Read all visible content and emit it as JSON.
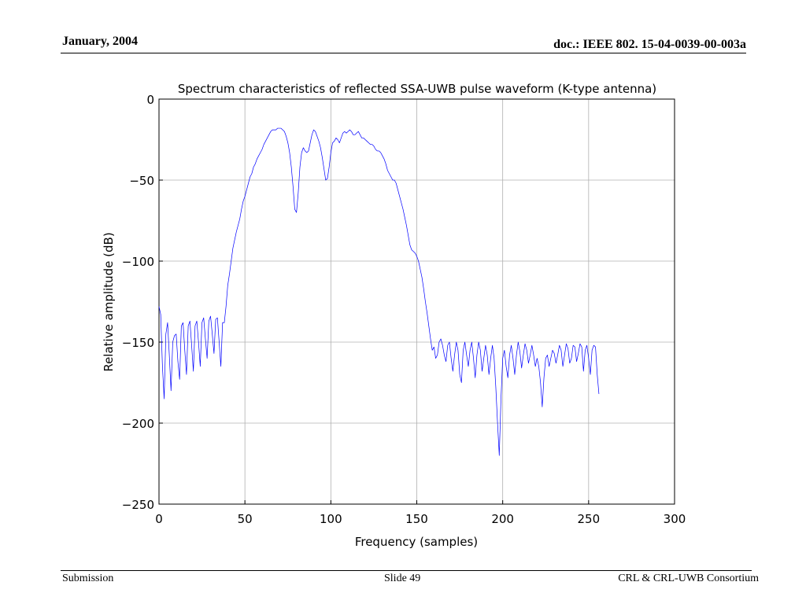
{
  "header": {
    "date": "January, 2004",
    "doc_id": "doc.: IEEE 802. 15-04-0039-00-003a"
  },
  "footer": {
    "left": "Submission",
    "center": "Slide 49",
    "right": "CRL & CRL-UWB Consortium"
  },
  "colors": {
    "line": "#0000ff",
    "grid": "#b0b0b0",
    "axis": "#000000"
  },
  "chart_data": {
    "type": "line",
    "title": "Spectrum characteristics of reflected SSA-UWB pulse waveform (K-type antenna)",
    "xlabel": "Frequency (samples)",
    "ylabel": "Relative amplitude (dB)",
    "xlim": [
      0,
      300
    ],
    "ylim": [
      -250,
      0
    ],
    "xticks": [
      0,
      50,
      100,
      150,
      200,
      250,
      300
    ],
    "yticks": [
      0,
      -50,
      -100,
      -150,
      -200,
      -250
    ],
    "xtick_labels": [
      "0",
      "50",
      "100",
      "150",
      "200",
      "250",
      "300"
    ],
    "ytick_labels": [
      "0",
      "−50",
      "−100",
      "−150",
      "−200",
      "−250"
    ],
    "grid": true,
    "series": [
      {
        "points": [
          [
            0,
            -128
          ],
          [
            1,
            -133
          ],
          [
            2,
            -165
          ],
          [
            3,
            -185
          ],
          [
            4,
            -145
          ],
          [
            5,
            -138
          ],
          [
            6,
            -158
          ],
          [
            7,
            -180
          ],
          [
            8,
            -150
          ],
          [
            9,
            -146
          ],
          [
            10,
            -145
          ],
          [
            11,
            -162
          ],
          [
            12,
            -173
          ],
          [
            13,
            -140
          ],
          [
            14,
            -138
          ],
          [
            15,
            -155
          ],
          [
            16,
            -170
          ],
          [
            17,
            -140
          ],
          [
            18,
            -137
          ],
          [
            19,
            -152
          ],
          [
            20,
            -168
          ],
          [
            21,
            -140
          ],
          [
            22,
            -137
          ],
          [
            23,
            -150
          ],
          [
            24,
            -165
          ],
          [
            25,
            -138
          ],
          [
            26,
            -135
          ],
          [
            27,
            -148
          ],
          [
            28,
            -160
          ],
          [
            29,
            -137
          ],
          [
            30,
            -134
          ],
          [
            31,
            -145
          ],
          [
            32,
            -157
          ],
          [
            33,
            -136
          ],
          [
            34,
            -135
          ],
          [
            35,
            -150
          ],
          [
            36,
            -165
          ],
          [
            37,
            -138
          ],
          [
            38,
            -138
          ],
          [
            39,
            -128
          ],
          [
            40,
            -115
          ],
          [
            41,
            -108
          ],
          [
            42,
            -100
          ],
          [
            43,
            -92
          ],
          [
            44,
            -87
          ],
          [
            45,
            -82
          ],
          [
            46,
            -78
          ],
          [
            47,
            -74
          ],
          [
            48,
            -68
          ],
          [
            49,
            -63
          ],
          [
            50,
            -60
          ],
          [
            51,
            -56
          ],
          [
            52,
            -52
          ],
          [
            53,
            -48
          ],
          [
            54,
            -46
          ],
          [
            55,
            -42
          ],
          [
            56,
            -40
          ],
          [
            57,
            -37
          ],
          [
            58,
            -35
          ],
          [
            59,
            -33
          ],
          [
            60,
            -31
          ],
          [
            61,
            -28
          ],
          [
            62,
            -26
          ],
          [
            63,
            -24
          ],
          [
            64,
            -22
          ],
          [
            65,
            -20
          ],
          [
            66,
            -19
          ],
          [
            67,
            -19
          ],
          [
            68,
            -19
          ],
          [
            69,
            -18
          ],
          [
            70,
            -18
          ],
          [
            71,
            -18
          ],
          [
            72,
            -19
          ],
          [
            73,
            -20
          ],
          [
            74,
            -23
          ],
          [
            75,
            -27
          ],
          [
            76,
            -33
          ],
          [
            77,
            -42
          ],
          [
            78,
            -54
          ],
          [
            79,
            -68
          ],
          [
            80,
            -70
          ],
          [
            81,
            -58
          ],
          [
            82,
            -42
          ],
          [
            83,
            -33
          ],
          [
            84,
            -30
          ],
          [
            85,
            -32
          ],
          [
            86,
            -33
          ],
          [
            87,
            -32
          ],
          [
            88,
            -27
          ],
          [
            89,
            -22
          ],
          [
            90,
            -19
          ],
          [
            91,
            -20
          ],
          [
            92,
            -23
          ],
          [
            93,
            -26
          ],
          [
            94,
            -30
          ],
          [
            95,
            -36
          ],
          [
            96,
            -43
          ],
          [
            97,
            -50
          ],
          [
            98,
            -49
          ],
          [
            99,
            -42
          ],
          [
            100,
            -33
          ],
          [
            101,
            -27
          ],
          [
            102,
            -26
          ],
          [
            103,
            -24
          ],
          [
            104,
            -25
          ],
          [
            105,
            -27
          ],
          [
            106,
            -24
          ],
          [
            107,
            -21
          ],
          [
            108,
            -20
          ],
          [
            109,
            -21
          ],
          [
            110,
            -20
          ],
          [
            111,
            -19
          ],
          [
            112,
            -20
          ],
          [
            113,
            -22
          ],
          [
            114,
            -22
          ],
          [
            115,
            -21
          ],
          [
            116,
            -20
          ],
          [
            117,
            -22
          ],
          [
            118,
            -24
          ],
          [
            119,
            -24
          ],
          [
            120,
            -25
          ],
          [
            121,
            -26
          ],
          [
            122,
            -27
          ],
          [
            123,
            -28
          ],
          [
            124,
            -28
          ],
          [
            125,
            -29
          ],
          [
            126,
            -31
          ],
          [
            127,
            -32
          ],
          [
            128,
            -32
          ],
          [
            129,
            -33
          ],
          [
            130,
            -35
          ],
          [
            131,
            -37
          ],
          [
            132,
            -40
          ],
          [
            133,
            -44
          ],
          [
            134,
            -46
          ],
          [
            135,
            -48
          ],
          [
            136,
            -50
          ],
          [
            137,
            -50
          ],
          [
            138,
            -52
          ],
          [
            139,
            -56
          ],
          [
            140,
            -60
          ],
          [
            141,
            -64
          ],
          [
            142,
            -68
          ],
          [
            143,
            -73
          ],
          [
            144,
            -78
          ],
          [
            145,
            -84
          ],
          [
            146,
            -90
          ],
          [
            147,
            -93
          ],
          [
            148,
            -94
          ],
          [
            149,
            -95
          ],
          [
            150,
            -97
          ],
          [
            151,
            -100
          ],
          [
            152,
            -105
          ],
          [
            153,
            -110
          ],
          [
            154,
            -117
          ],
          [
            155,
            -125
          ],
          [
            156,
            -132
          ],
          [
            157,
            -140
          ],
          [
            158,
            -148
          ],
          [
            159,
            -155
          ],
          [
            160,
            -153
          ],
          [
            161,
            -160
          ],
          [
            162,
            -158
          ],
          [
            163,
            -150
          ],
          [
            164,
            -148
          ],
          [
            165,
            -152
          ],
          [
            166,
            -158
          ],
          [
            167,
            -162
          ],
          [
            168,
            -152
          ],
          [
            169,
            -150
          ],
          [
            170,
            -160
          ],
          [
            171,
            -168
          ],
          [
            172,
            -158
          ],
          [
            173,
            -150
          ],
          [
            174,
            -155
          ],
          [
            175,
            -170
          ],
          [
            176,
            -175
          ],
          [
            177,
            -155
          ],
          [
            178,
            -150
          ],
          [
            179,
            -158
          ],
          [
            180,
            -165
          ],
          [
            181,
            -155
          ],
          [
            182,
            -150
          ],
          [
            183,
            -160
          ],
          [
            184,
            -172
          ],
          [
            185,
            -158
          ],
          [
            186,
            -150
          ],
          [
            187,
            -155
          ],
          [
            188,
            -168
          ],
          [
            189,
            -160
          ],
          [
            190,
            -152
          ],
          [
            191,
            -158
          ],
          [
            192,
            -170
          ],
          [
            193,
            -160
          ],
          [
            194,
            -152
          ],
          [
            195,
            -160
          ],
          [
            196,
            -178
          ],
          [
            197,
            -200
          ],
          [
            198,
            -220
          ],
          [
            199,
            -185
          ],
          [
            200,
            -160
          ],
          [
            201,
            -155
          ],
          [
            202,
            -165
          ],
          [
            203,
            -172
          ],
          [
            204,
            -158
          ],
          [
            205,
            -152
          ],
          [
            206,
            -160
          ],
          [
            207,
            -170
          ],
          [
            208,
            -158
          ],
          [
            209,
            -150
          ],
          [
            210,
            -156
          ],
          [
            211,
            -166
          ],
          [
            212,
            -158
          ],
          [
            213,
            -151
          ],
          [
            214,
            -155
          ],
          [
            215,
            -163
          ],
          [
            216,
            -158
          ],
          [
            217,
            -152
          ],
          [
            218,
            -158
          ],
          [
            219,
            -165
          ],
          [
            220,
            -160
          ],
          [
            221,
            -165
          ],
          [
            222,
            -175
          ],
          [
            223,
            -190
          ],
          [
            224,
            -172
          ],
          [
            225,
            -160
          ],
          [
            226,
            -158
          ],
          [
            227,
            -165
          ],
          [
            228,
            -160
          ],
          [
            229,
            -155
          ],
          [
            230,
            -157
          ],
          [
            231,
            -163
          ],
          [
            232,
            -158
          ],
          [
            233,
            -152
          ],
          [
            234,
            -155
          ],
          [
            235,
            -165
          ],
          [
            236,
            -158
          ],
          [
            237,
            -151
          ],
          [
            238,
            -154
          ],
          [
            239,
            -163
          ],
          [
            240,
            -160
          ],
          [
            241,
            -152
          ],
          [
            242,
            -153
          ],
          [
            243,
            -162
          ],
          [
            244,
            -157
          ],
          [
            245,
            -151
          ],
          [
            246,
            -153
          ],
          [
            247,
            -168
          ],
          [
            248,
            -155
          ],
          [
            249,
            -152
          ],
          [
            250,
            -160
          ],
          [
            251,
            -170
          ],
          [
            252,
            -155
          ],
          [
            253,
            -152
          ],
          [
            254,
            -153
          ],
          [
            255,
            -170
          ],
          [
            256,
            -182
          ]
        ]
      }
    ]
  }
}
